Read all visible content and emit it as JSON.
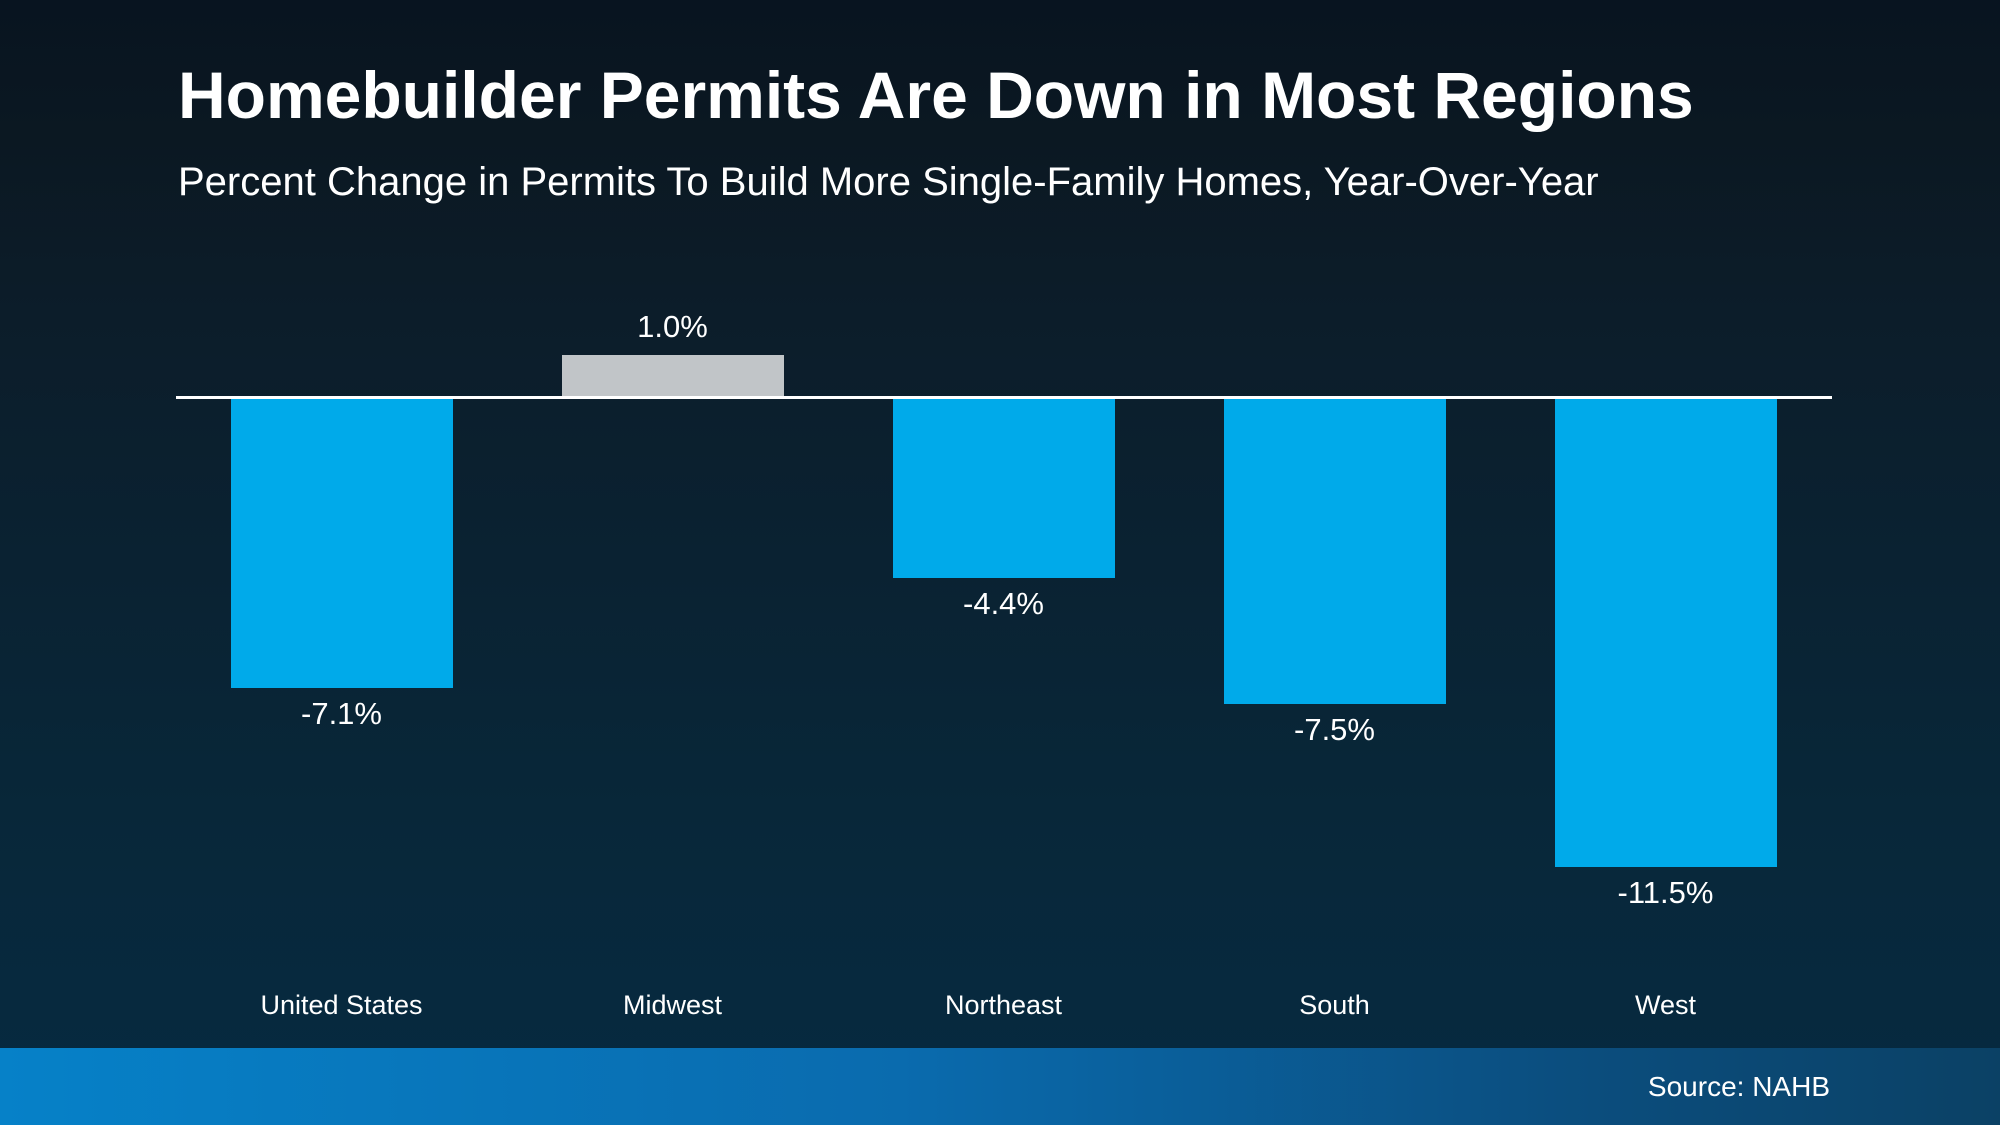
{
  "slide": {
    "title": "Homebuilder Permits Are Down in Most Regions",
    "subtitle": "Percent Change in Permits To Build More Single-Family Homes, Year-Over-Year",
    "source": "Source: NAHB"
  },
  "colors": {
    "bar_negative": "#00aaea",
    "bar_positive": "#c1c5c8",
    "axis_line": "#ffffff",
    "text": "#ffffff",
    "background_top": "#081420",
    "background_bottom": "#062940",
    "footer_gradient_left": "#0681c8",
    "footer_gradient_right": "#0b4165"
  },
  "chart_data": {
    "type": "bar",
    "title": "Homebuilder Permits Are Down in Most Regions",
    "subtitle": "Percent Change in Permits To Build More Single-Family Homes, Year-Over-Year",
    "categories": [
      "United States",
      "Midwest",
      "Northeast",
      "South",
      "West"
    ],
    "values": [
      -7.1,
      1.0,
      -4.4,
      -7.5,
      -11.5
    ],
    "value_labels": [
      "-7.1%",
      "1.0%",
      "-4.4%",
      "-7.5%",
      "-11.5%"
    ],
    "xlabel": "",
    "ylabel": "",
    "ylim": [
      -12,
      2
    ],
    "grid": false,
    "legend": false,
    "zero_baseline_shown": true,
    "positive_bar_color": "#c1c5c8",
    "negative_bar_color": "#00aaea"
  }
}
